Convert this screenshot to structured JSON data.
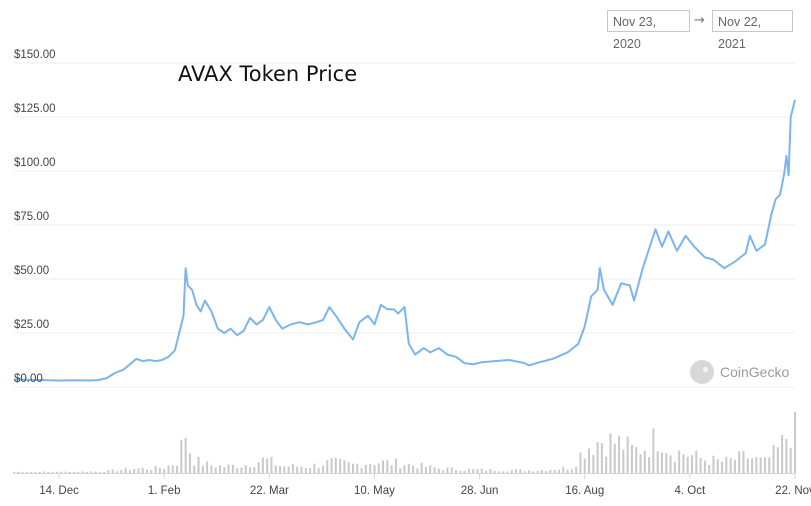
{
  "date_range": {
    "from": "Nov 23, 2020",
    "arrow": "→",
    "to": "Nov 22, 2021"
  },
  "watermark": "CoinGecko",
  "colors": {
    "line": "#7cb5ec",
    "volume": "#c9c9c9",
    "grid": "#ececec",
    "axis_text": "#444444"
  },
  "chart_data": {
    "type": "line",
    "title": "AVAX Token Price",
    "xlabel": "",
    "ylabel": "",
    "ylim": [
      0,
      150
    ],
    "y_ticks": [
      "$0.00",
      "$25.00",
      "$50.00",
      "$75.00",
      "$100.00",
      "$125.00",
      "$150.00"
    ],
    "y_tick_values": [
      0,
      25,
      50,
      75,
      100,
      125,
      150
    ],
    "x_ticks": [
      "14. Dec",
      "1. Feb",
      "22. Mar",
      "10. May",
      "28. Jun",
      "16. Aug",
      "4. Oct",
      "22. Nov"
    ],
    "x_tick_dates": [
      "2020-12-14",
      "2021-02-01",
      "2021-03-22",
      "2021-05-10",
      "2021-06-28",
      "2021-08-16",
      "2021-10-04",
      "2021-11-22"
    ],
    "xlim": [
      "2020-11-23",
      "2021-11-22"
    ],
    "grid": true,
    "series": [
      {
        "values_kind": "price_usd",
        "points": [
          [
            "2020-11-23",
            3.5
          ],
          [
            "2020-11-30",
            3.3
          ],
          [
            "2020-12-07",
            3.2
          ],
          [
            "2020-12-14",
            3.0
          ],
          [
            "2020-12-21",
            3.1
          ],
          [
            "2020-12-28",
            3.0
          ],
          [
            "2021-01-01",
            3.2
          ],
          [
            "2021-01-05",
            4.0
          ],
          [
            "2021-01-09",
            6.5
          ],
          [
            "2021-01-13",
            8.0
          ],
          [
            "2021-01-16",
            10.5
          ],
          [
            "2021-01-19",
            13.0
          ],
          [
            "2021-01-22",
            12.0
          ],
          [
            "2021-01-25",
            12.5
          ],
          [
            "2021-01-28",
            12.0
          ],
          [
            "2021-01-31",
            12.5
          ],
          [
            "2021-02-03",
            14.0
          ],
          [
            "2021-02-06",
            17.0
          ],
          [
            "2021-02-08",
            25.0
          ],
          [
            "2021-02-10",
            33.0
          ],
          [
            "2021-02-11",
            55.0
          ],
          [
            "2021-02-12",
            47.0
          ],
          [
            "2021-02-14",
            45.0
          ],
          [
            "2021-02-16",
            38.0
          ],
          [
            "2021-02-18",
            35.0
          ],
          [
            "2021-02-20",
            40.0
          ],
          [
            "2021-02-23",
            35.0
          ],
          [
            "2021-02-26",
            27.0
          ],
          [
            "2021-03-01",
            25.0
          ],
          [
            "2021-03-04",
            27.0
          ],
          [
            "2021-03-07",
            24.0
          ],
          [
            "2021-03-10",
            26.0
          ],
          [
            "2021-03-13",
            32.0
          ],
          [
            "2021-03-16",
            29.0
          ],
          [
            "2021-03-19",
            31.0
          ],
          [
            "2021-03-22",
            37.0
          ],
          [
            "2021-03-25",
            31.0
          ],
          [
            "2021-03-28",
            27.0
          ],
          [
            "2021-04-01",
            29.0
          ],
          [
            "2021-04-05",
            30.0
          ],
          [
            "2021-04-09",
            29.0
          ],
          [
            "2021-04-13",
            30.0
          ],
          [
            "2021-04-16",
            31.0
          ],
          [
            "2021-04-19",
            37.0
          ],
          [
            "2021-04-22",
            33.0
          ],
          [
            "2021-04-26",
            27.0
          ],
          [
            "2021-04-30",
            22.0
          ],
          [
            "2021-05-03",
            30.0
          ],
          [
            "2021-05-07",
            33.0
          ],
          [
            "2021-05-10",
            29.0
          ],
          [
            "2021-05-13",
            38.0
          ],
          [
            "2021-05-16",
            36.0
          ],
          [
            "2021-05-19",
            36.0
          ],
          [
            "2021-05-21",
            34.0
          ],
          [
            "2021-05-24",
            37.0
          ],
          [
            "2021-05-26",
            20.0
          ],
          [
            "2021-05-29",
            15.0
          ],
          [
            "2021-06-02",
            18.0
          ],
          [
            "2021-06-05",
            16.0
          ],
          [
            "2021-06-09",
            18.0
          ],
          [
            "2021-06-13",
            15.0
          ],
          [
            "2021-06-17",
            14.0
          ],
          [
            "2021-06-21",
            11.0
          ],
          [
            "2021-06-25",
            10.5
          ],
          [
            "2021-06-29",
            11.5
          ],
          [
            "2021-07-05",
            12.0
          ],
          [
            "2021-07-12",
            12.5
          ],
          [
            "2021-07-19",
            11.0
          ],
          [
            "2021-07-21",
            10.0
          ],
          [
            "2021-07-26",
            11.5
          ],
          [
            "2021-08-01",
            13.0
          ],
          [
            "2021-08-08",
            16.0
          ],
          [
            "2021-08-13",
            20.0
          ],
          [
            "2021-08-16",
            28.0
          ],
          [
            "2021-08-19",
            42.0
          ],
          [
            "2021-08-22",
            45.0
          ],
          [
            "2021-08-23",
            55.0
          ],
          [
            "2021-08-25",
            45.0
          ],
          [
            "2021-08-29",
            38.0
          ],
          [
            "2021-09-02",
            48.0
          ],
          [
            "2021-09-06",
            47.0
          ],
          [
            "2021-09-08",
            40.0
          ],
          [
            "2021-09-12",
            55.0
          ],
          [
            "2021-09-15",
            64.0
          ],
          [
            "2021-09-18",
            73.0
          ],
          [
            "2021-09-21",
            65.0
          ],
          [
            "2021-09-24",
            72.0
          ],
          [
            "2021-09-28",
            63.0
          ],
          [
            "2021-10-02",
            70.0
          ],
          [
            "2021-10-06",
            65.0
          ],
          [
            "2021-10-11",
            60.0
          ],
          [
            "2021-10-15",
            59.0
          ],
          [
            "2021-10-20",
            55.0
          ],
          [
            "2021-10-25",
            58.0
          ],
          [
            "2021-10-30",
            62.0
          ],
          [
            "2021-11-01",
            70.0
          ],
          [
            "2021-11-04",
            63.0
          ],
          [
            "2021-11-08",
            66.0
          ],
          [
            "2021-11-11",
            80.0
          ],
          [
            "2021-11-13",
            87.0
          ],
          [
            "2021-11-15",
            89.0
          ],
          [
            "2021-11-17",
            99.0
          ],
          [
            "2021-11-18",
            107.0
          ],
          [
            "2021-11-19",
            98.0
          ],
          [
            "2021-11-20",
            125.0
          ],
          [
            "2021-11-22",
            133.0
          ]
        ]
      },
      {
        "values_kind": "volume_relative",
        "points": [
          [
            "2020-11-23",
            0.02
          ],
          [
            "2020-12-14",
            0.02
          ],
          [
            "2021-01-04",
            0.03
          ],
          [
            "2021-01-18",
            0.08
          ],
          [
            "2021-01-25",
            0.08
          ],
          [
            "2021-02-01",
            0.1
          ],
          [
            "2021-02-07",
            0.2
          ],
          [
            "2021-02-11",
            0.75
          ],
          [
            "2021-02-14",
            0.25
          ],
          [
            "2021-02-21",
            0.15
          ],
          [
            "2021-03-01",
            0.12
          ],
          [
            "2021-03-10",
            0.14
          ],
          [
            "2021-03-20",
            0.25
          ],
          [
            "2021-03-28",
            0.12
          ],
          [
            "2021-04-10",
            0.12
          ],
          [
            "2021-04-20",
            0.2
          ],
          [
            "2021-04-30",
            0.15
          ],
          [
            "2021-05-10",
            0.2
          ],
          [
            "2021-05-20",
            0.18
          ],
          [
            "2021-05-27",
            0.15
          ],
          [
            "2021-06-10",
            0.08
          ],
          [
            "2021-06-25",
            0.06
          ],
          [
            "2021-07-10",
            0.05
          ],
          [
            "2021-07-25",
            0.05
          ],
          [
            "2021-08-10",
            0.1
          ],
          [
            "2021-08-16",
            0.45
          ],
          [
            "2021-08-23",
            0.6
          ],
          [
            "2021-09-01",
            0.55
          ],
          [
            "2021-09-08",
            0.4
          ],
          [
            "2021-09-15",
            0.5
          ],
          [
            "2021-09-20",
            0.72
          ],
          [
            "2021-09-25",
            0.4
          ],
          [
            "2021-10-02",
            0.35
          ],
          [
            "2021-10-10",
            0.25
          ],
          [
            "2021-10-20",
            0.2
          ],
          [
            "2021-10-30",
            0.3
          ],
          [
            "2021-11-08",
            0.2
          ],
          [
            "2021-11-15",
            0.45
          ],
          [
            "2021-11-20",
            0.8
          ],
          [
            "2021-11-22",
            1.0
          ]
        ]
      }
    ]
  }
}
